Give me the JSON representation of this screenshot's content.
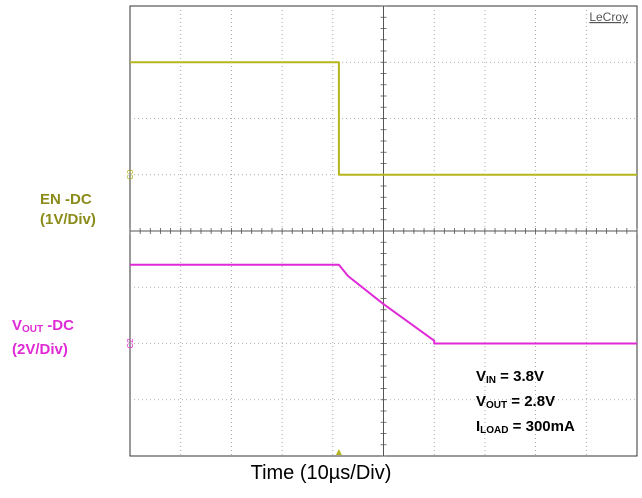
{
  "chart_data": {
    "type": "line",
    "brand": "LeCroy",
    "x_divisions": 10,
    "y_divisions": 8,
    "xlabel": "Time (10µs/Div)",
    "channel_markers": [
      "C3",
      "C2"
    ],
    "series": [
      {
        "name": "EN -DC",
        "scale": "(1V/Div)",
        "color": "#b5b51e",
        "label_color": "#8b8b1a",
        "ground_div": 1.0,
        "x": [
          0,
          4.12,
          4.12,
          4.2,
          10
        ],
        "y": [
          2.0,
          2.0,
          0.0,
          0.0,
          0.0
        ]
      },
      {
        "name": "VOUT -DC",
        "name_main": "V",
        "name_sub": "OUT",
        "name_rest": " -DC",
        "scale": "(2V/Div)",
        "color": "#e02ad6",
        "label_color": "#e02ad6",
        "ground_div": -2.0,
        "x": [
          0,
          4.12,
          4.3,
          5.0,
          6.0,
          6.0,
          10
        ],
        "y": [
          1.4,
          1.4,
          1.2,
          0.7,
          0.05,
          0.0,
          0.0
        ]
      }
    ],
    "params": [
      {
        "main": "V",
        "sub": "IN",
        "rest": " = 3.8V"
      },
      {
        "main": "V",
        "sub": "OUT",
        "rest": " = 2.8V"
      },
      {
        "main": "I",
        "sub": "LOAD",
        "rest": " = 300mA"
      }
    ]
  }
}
